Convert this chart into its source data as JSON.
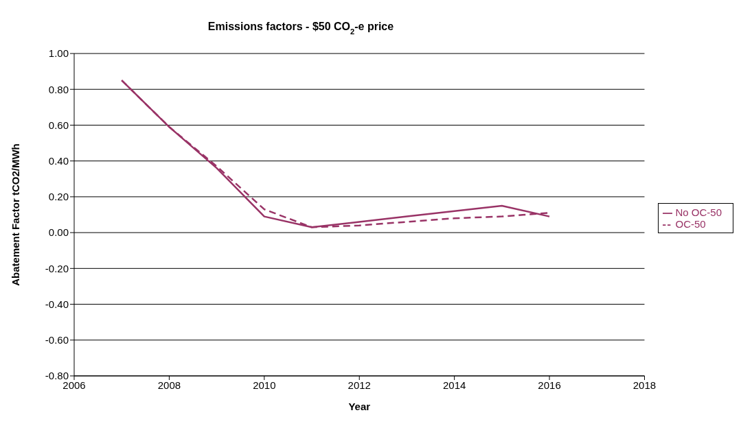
{
  "chart_data": {
    "type": "line",
    "title": "Emissions factors - $50 CO$_{2}$-e price",
    "xlabel": "Year",
    "ylabel": "Abatement Factor  tCO2/MWh",
    "x": [
      2007,
      2008,
      2009,
      2010,
      2011,
      2012,
      2013,
      2014,
      2015,
      2016
    ],
    "series": [
      {
        "name": "No OC-50",
        "color": "#993366",
        "line_style": "solid",
        "values": [
          0.85,
          0.59,
          0.36,
          0.09,
          0.03,
          0.06,
          0.09,
          0.12,
          0.15,
          0.09
        ]
      },
      {
        "name": "OC-50",
        "color": "#993366",
        "line_style": "dashed",
        "values": [
          0.85,
          0.59,
          0.37,
          0.13,
          0.03,
          0.04,
          0.06,
          0.08,
          0.09,
          0.11
        ]
      }
    ],
    "xlim": [
      2006,
      2018
    ],
    "xticks": [
      2006,
      2008,
      2010,
      2012,
      2014,
      2016,
      2018
    ],
    "ylim": [
      -0.8,
      1
    ],
    "yticks": [
      {
        "value": -0.8,
        "label": "-0.80"
      },
      {
        "value": -0.6,
        "label": "-0.60"
      },
      {
        "value": -0.4,
        "label": "-0.40"
      },
      {
        "value": -0.2,
        "label": "-0.20"
      },
      {
        "value": 0,
        "label": "0.00"
      },
      {
        "value": 0.2,
        "label": "0.20"
      },
      {
        "value": 0.4,
        "label": "0.40"
      },
      {
        "value": 0.6,
        "label": "0.60"
      },
      {
        "value": 0.8,
        "label": "0.80"
      },
      {
        "value": 1,
        "label": "1.00"
      }
    ],
    "grid": "y",
    "legend": "right",
    "marker": "none"
  }
}
